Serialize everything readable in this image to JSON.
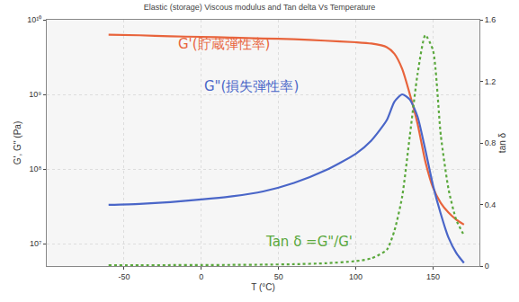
{
  "chart_data": {
    "type": "line",
    "title": "Elastic (storage) Viscous modulus and Tan delta Vs Temperature",
    "x_label": "T (°C)",
    "y_label": "G', G'' (Pa)",
    "y2_label": "tan δ",
    "log": "y",
    "grid": true,
    "x": [
      -60,
      -40,
      -20,
      0,
      20,
      40,
      60,
      80,
      100,
      110,
      120,
      125,
      130,
      135,
      140,
      145,
      150,
      155,
      160,
      165,
      170
    ],
    "xlim": [
      -100,
      180
    ],
    "xticks": [
      -50,
      0,
      50,
      100,
      150
    ],
    "ylim": [
      5000000,
      10000000000
    ],
    "yticks": [
      {
        "value": 10000000,
        "label": "10⁷"
      },
      {
        "value": 100000000,
        "label": "10⁸"
      },
      {
        "value": 1000000000,
        "label": "10⁹"
      },
      {
        "value": 10000000000,
        "label": "10¹⁰"
      }
    ],
    "y2lim": [
      0,
      1.6
    ],
    "y2ticks": [
      0,
      0.4,
      0.8,
      1.2,
      1.6
    ],
    "series": [
      {
        "name": "G'(貯蔵弾性率)",
        "color": "#e8643c",
        "line_style": "solid",
        "values": [
          6300000000,
          6200000000,
          6000000000,
          5900000000,
          5750000000,
          5600000000,
          5500000000,
          5250000000,
          5000000000,
          4800000000,
          4300000000,
          3500000000,
          2200000000,
          1000000000,
          400000000,
          126000000,
          56000000,
          35000000,
          26000000,
          21000000,
          18000000
        ]
      },
      {
        "name": "G\"(損失弾性率)",
        "color": "#4a66c8",
        "line_style": "solid",
        "values": [
          33000000,
          34000000,
          36000000,
          39000000,
          43000000,
          50000000,
          65000000,
          95000000,
          160000000,
          240000000,
          450000000,
          800000000,
          1000000000,
          850000000,
          500000000,
          180000000,
          60000000,
          25000000,
          12000000,
          7500000,
          5500000
        ]
      },
      {
        "name": "Tan δ =G\"/G'",
        "color": "#5aa83c",
        "line_style": "dot",
        "axis": "y2",
        "values": [
          0.005,
          0.0055,
          0.006,
          0.0066,
          0.0075,
          0.009,
          0.012,
          0.018,
          0.032,
          0.05,
          0.105,
          0.23,
          0.45,
          0.85,
          1.25,
          1.5,
          1.4,
          0.85,
          0.5,
          0.3,
          0.2
        ]
      }
    ]
  }
}
